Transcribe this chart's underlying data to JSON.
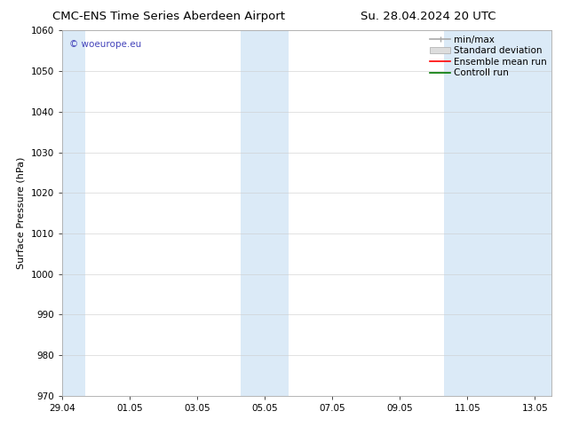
{
  "title_left": "CMC-ENS Time Series Aberdeen Airport",
  "title_right": "Su. 28.04.2024 20 UTC",
  "ylabel": "Surface Pressure (hPa)",
  "ylim": [
    970,
    1060
  ],
  "yticks": [
    970,
    980,
    990,
    1000,
    1010,
    1020,
    1030,
    1040,
    1050,
    1060
  ],
  "xtick_labels": [
    "29.04",
    "01.05",
    "03.05",
    "05.05",
    "07.05",
    "09.05",
    "11.05",
    "13.05"
  ],
  "xtick_positions": [
    0,
    2,
    4,
    6,
    8,
    10,
    12,
    14
  ],
  "xlim": [
    0,
    14.5
  ],
  "shaded_bands": [
    {
      "x_start": -0.1,
      "x_end": 0.7
    },
    {
      "x_start": 5.3,
      "x_end": 6.7
    },
    {
      "x_start": 11.3,
      "x_end": 14.6
    }
  ],
  "shaded_color": "#dbeaf7",
  "background_color": "#ffffff",
  "watermark_text": "© woeurope.eu",
  "watermark_color": "#4444bb",
  "grid_color": "#cccccc",
  "title_fontsize": 9.5,
  "tick_fontsize": 7.5,
  "legend_fontsize": 7.5,
  "ylabel_fontsize": 8.0
}
